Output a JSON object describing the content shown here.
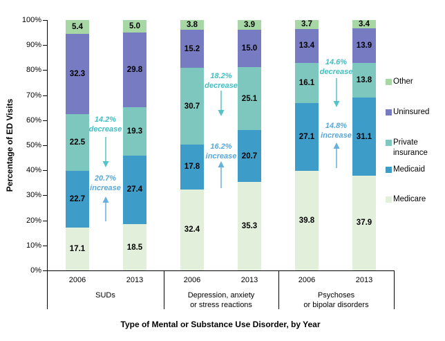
{
  "chart_data": {
    "type": "bar",
    "stacked": true,
    "title": "",
    "xlabel": "Type of Mental or Substance Use Disorder, by Year",
    "ylabel": "Percentage of ED Visits",
    "ylim": [
      0,
      100
    ],
    "yticks": [
      "0%",
      "10%",
      "20%",
      "30%",
      "40%",
      "50%",
      "60%",
      "70%",
      "80%",
      "90%",
      "100%"
    ],
    "grid": false,
    "legend_position": "right",
    "stack_order_bottom_to_top": [
      "Medicare",
      "Medicaid",
      "Private insurance",
      "Uninsured",
      "Other"
    ],
    "series_colors": {
      "Medicare": "#e2efda",
      "Medicaid": "#3d9cc8",
      "Private insurance": "#7ec7be",
      "Uninsured": "#767bc2",
      "Other": "#a7d7a5"
    },
    "groups": [
      {
        "label_lines": [
          "SUDs"
        ],
        "bars": [
          {
            "year": "2006",
            "values": {
              "Medicare": 17.1,
              "Medicaid": 22.7,
              "Private insurance": 22.5,
              "Uninsured": 32.3,
              "Other": 5.4
            }
          },
          {
            "year": "2013",
            "values": {
              "Medicare": 18.5,
              "Medicaid": 27.4,
              "Private insurance": 19.3,
              "Uninsured": 29.8,
              "Other": 5.0
            }
          }
        ],
        "annotations": [
          {
            "text_lines": [
              "14.2%",
              "decrease"
            ],
            "direction": "down",
            "color": "#43bec2"
          },
          {
            "text_lines": [
              "20.7%",
              "increase"
            ],
            "direction": "up",
            "color": "#58a8db"
          }
        ]
      },
      {
        "label_lines": [
          "Depression, anxiety",
          "or stress reactions"
        ],
        "bars": [
          {
            "year": "2006",
            "values": {
              "Medicare": 32.4,
              "Medicaid": 17.8,
              "Private insurance": 30.7,
              "Uninsured": 15.2,
              "Other": 3.8
            }
          },
          {
            "year": "2013",
            "values": {
              "Medicare": 35.3,
              "Medicaid": 20.7,
              "Private insurance": 25.1,
              "Uninsured": 15.0,
              "Other": 3.9
            }
          }
        ],
        "annotations": [
          {
            "text_lines": [
              "18.2%",
              "decrease"
            ],
            "direction": "down",
            "color": "#43bec2"
          },
          {
            "text_lines": [
              "16.2%",
              "increase"
            ],
            "direction": "up",
            "color": "#58a8db"
          }
        ]
      },
      {
        "label_lines": [
          "Psychoses",
          "or bipolar disorders"
        ],
        "bars": [
          {
            "year": "2006",
            "values": {
              "Medicare": 39.8,
              "Medicaid": 27.1,
              "Private insurance": 16.1,
              "Uninsured": 13.4,
              "Other": 3.7
            }
          },
          {
            "year": "2013",
            "values": {
              "Medicare": 37.9,
              "Medicaid": 31.1,
              "Private insurance": 13.8,
              "Uninsured": 13.9,
              "Other": 3.4
            }
          }
        ],
        "annotations": [
          {
            "text_lines": [
              "14.6%",
              "decrease"
            ],
            "direction": "down",
            "color": "#43bec2"
          },
          {
            "text_lines": [
              "14.8%",
              "increase"
            ],
            "direction": "up",
            "color": "#58a8db"
          }
        ]
      }
    ],
    "legend": [
      {
        "label_lines": [
          "Other"
        ],
        "series": "Other"
      },
      {
        "label_lines": [
          "Uninsured"
        ],
        "series": "Uninsured"
      },
      {
        "label_lines": [
          "Private",
          "insurance"
        ],
        "series": "Private insurance"
      },
      {
        "label_lines": [
          "Medicaid"
        ],
        "series": "Medicaid"
      },
      {
        "label_lines": [
          "Medicare"
        ],
        "series": "Medicare"
      }
    ]
  }
}
